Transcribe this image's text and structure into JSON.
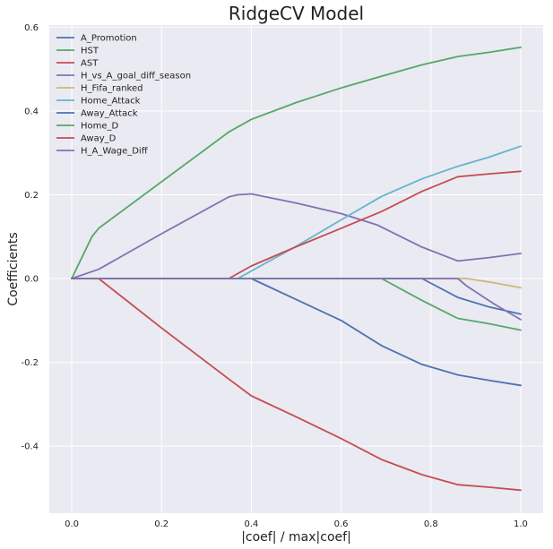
{
  "chart_data": {
    "type": "line",
    "title": "RidgeCV Model",
    "xlabel": "|coef| / max|coef|",
    "ylabel": "Coefficients",
    "xlim": [
      -0.05,
      1.05
    ],
    "ylim": [
      -0.56,
      0.605
    ],
    "xticks": [
      0.0,
      0.2,
      0.4,
      0.6,
      0.8,
      1.0
    ],
    "xtick_labels": [
      "0.0",
      "0.2",
      "0.4",
      "0.6",
      "0.8",
      "1.0"
    ],
    "yticks": [
      -0.4,
      -0.2,
      0.0,
      0.2,
      0.4,
      0.6
    ],
    "ytick_labels": [
      "-0.4",
      "-0.2",
      "0.0",
      "0.2",
      "0.4",
      "0.6"
    ],
    "grid": true,
    "legend_position": "top-left",
    "background": "#EAEAF2",
    "series": [
      {
        "name": "A_Promotion",
        "color": "#4C72B0",
        "points": [
          [
            0,
            0
          ],
          [
            0.4,
            0
          ],
          [
            0.5,
            -0.05
          ],
          [
            0.6,
            -0.1
          ],
          [
            0.69,
            -0.16
          ],
          [
            0.78,
            -0.205
          ],
          [
            0.86,
            -0.23
          ],
          [
            0.93,
            -0.243
          ],
          [
            1.0,
            -0.255
          ]
        ]
      },
      {
        "name": "HST",
        "color": "#55A868",
        "points": [
          [
            0,
            0
          ],
          [
            0.045,
            0.1
          ],
          [
            0.06,
            0.12
          ],
          [
            0.35,
            0.35
          ],
          [
            0.37,
            0.362
          ],
          [
            0.4,
            0.38
          ],
          [
            0.5,
            0.42
          ],
          [
            0.6,
            0.455
          ],
          [
            0.69,
            0.483
          ],
          [
            0.78,
            0.51
          ],
          [
            0.86,
            0.53
          ],
          [
            0.93,
            0.54
          ],
          [
            1.0,
            0.552
          ]
        ]
      },
      {
        "name": "AST",
        "color": "#C44E52",
        "points": [
          [
            0,
            0
          ],
          [
            0.06,
            0
          ],
          [
            0.2,
            -0.118
          ],
          [
            0.35,
            -0.24
          ],
          [
            0.4,
            -0.28
          ],
          [
            0.5,
            -0.33
          ],
          [
            0.6,
            -0.382
          ],
          [
            0.69,
            -0.432
          ],
          [
            0.78,
            -0.468
          ],
          [
            0.86,
            -0.492
          ],
          [
            0.93,
            -0.498
          ],
          [
            1.0,
            -0.505
          ]
        ]
      },
      {
        "name": "H_vs_A_goal_diff_season",
        "color": "#8172B2",
        "points": [
          [
            0,
            0
          ],
          [
            0.06,
            0.022
          ],
          [
            0.2,
            0.107
          ],
          [
            0.35,
            0.195
          ],
          [
            0.37,
            0.2
          ],
          [
            0.4,
            0.202
          ],
          [
            0.5,
            0.18
          ],
          [
            0.6,
            0.155
          ],
          [
            0.68,
            0.128
          ],
          [
            0.78,
            0.075
          ],
          [
            0.86,
            0.042
          ],
          [
            0.93,
            0.05
          ],
          [
            1.0,
            0.06
          ]
        ]
      },
      {
        "name": "H_Fifa_ranked",
        "color": "#CCB974",
        "points": [
          [
            0,
            0
          ],
          [
            0.86,
            0
          ],
          [
            0.88,
            0
          ],
          [
            0.94,
            -0.01
          ],
          [
            1.0,
            -0.022
          ]
        ]
      },
      {
        "name": "Home_Attack",
        "color": "#64B5CD",
        "points": [
          [
            0,
            0
          ],
          [
            0.37,
            0
          ],
          [
            0.4,
            0.018
          ],
          [
            0.5,
            0.077
          ],
          [
            0.6,
            0.14
          ],
          [
            0.69,
            0.196
          ],
          [
            0.78,
            0.238
          ],
          [
            0.86,
            0.268
          ],
          [
            0.93,
            0.29
          ],
          [
            1.0,
            0.316
          ]
        ]
      },
      {
        "name": "Away_Attack",
        "color": "#4C72B0",
        "points": [
          [
            0,
            0
          ],
          [
            0.78,
            0
          ],
          [
            0.86,
            -0.045
          ],
          [
            0.93,
            -0.068
          ],
          [
            1.0,
            -0.085
          ]
        ]
      },
      {
        "name": "Home_D",
        "color": "#55A868",
        "points": [
          [
            0,
            0
          ],
          [
            0.69,
            0
          ],
          [
            0.78,
            -0.052
          ],
          [
            0.86,
            -0.095
          ],
          [
            0.93,
            -0.108
          ],
          [
            1.0,
            -0.123
          ]
        ]
      },
      {
        "name": "Away_D",
        "color": "#C44E52",
        "points": [
          [
            0,
            0
          ],
          [
            0.35,
            0
          ],
          [
            0.37,
            0.012
          ],
          [
            0.4,
            0.03
          ],
          [
            0.5,
            0.076
          ],
          [
            0.6,
            0.12
          ],
          [
            0.69,
            0.16
          ],
          [
            0.78,
            0.208
          ],
          [
            0.86,
            0.243
          ],
          [
            0.93,
            0.25
          ],
          [
            1.0,
            0.256
          ]
        ]
      },
      {
        "name": "H_A_Wage_Diff",
        "color": "#8172B2",
        "points": [
          [
            0,
            0
          ],
          [
            0.86,
            0
          ],
          [
            0.88,
            -0.018
          ],
          [
            0.94,
            -0.06
          ],
          [
            1.0,
            -0.098
          ]
        ]
      }
    ]
  }
}
